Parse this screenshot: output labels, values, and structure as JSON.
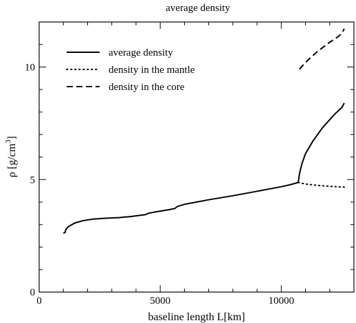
{
  "chart_data": {
    "type": "line",
    "title": "average density",
    "xlabel": "baseline length L[km]",
    "ylabel_main": "ρ [g/cm",
    "ylabel_sup": "3",
    "ylabel_close": "]",
    "xlim": [
      0,
      13000
    ],
    "ylim": [
      0,
      12
    ],
    "x_ticks": [
      0,
      5000,
      10000
    ],
    "y_ticks": [
      0,
      5,
      10
    ],
    "x_minor_step": 1000,
    "y_minor_step": 1,
    "grid": false,
    "legend_position": "upper-left",
    "series": [
      {
        "name": "average density",
        "dash": "solid",
        "points": [
          [
            1000,
            2.62
          ],
          [
            1070,
            2.65
          ],
          [
            1100,
            2.78
          ],
          [
            1200,
            2.9
          ],
          [
            1350,
            3.0
          ],
          [
            1500,
            3.08
          ],
          [
            1800,
            3.17
          ],
          [
            2200,
            3.24
          ],
          [
            2700,
            3.28
          ],
          [
            3300,
            3.31
          ],
          [
            3800,
            3.36
          ],
          [
            4400,
            3.44
          ],
          [
            4500,
            3.5
          ],
          [
            4800,
            3.56
          ],
          [
            5300,
            3.65
          ],
          [
            5600,
            3.71
          ],
          [
            5700,
            3.8
          ],
          [
            6000,
            3.9
          ],
          [
            6500,
            4.0
          ],
          [
            7000,
            4.1
          ],
          [
            8000,
            4.28
          ],
          [
            9000,
            4.48
          ],
          [
            10000,
            4.68
          ],
          [
            10400,
            4.78
          ],
          [
            10700,
            4.87
          ],
          [
            10750,
            5.25
          ],
          [
            10850,
            5.7
          ],
          [
            11000,
            6.15
          ],
          [
            11300,
            6.7
          ],
          [
            11700,
            7.3
          ],
          [
            12200,
            7.9
          ],
          [
            12500,
            8.2
          ],
          [
            12600,
            8.4
          ]
        ]
      },
      {
        "name": "density in the mantle",
        "dash": "dotted",
        "points": [
          [
            10700,
            4.87
          ],
          [
            11000,
            4.8
          ],
          [
            11500,
            4.74
          ],
          [
            12000,
            4.7
          ],
          [
            12300,
            4.68
          ],
          [
            12600,
            4.66
          ]
        ]
      },
      {
        "name": "density in the core",
        "dash": "dashed",
        "points": [
          [
            10750,
            9.9
          ],
          [
            11000,
            10.2
          ],
          [
            11500,
            10.7
          ],
          [
            12000,
            11.1
          ],
          [
            12350,
            11.35
          ],
          [
            12500,
            11.5
          ],
          [
            12600,
            11.7
          ]
        ]
      }
    ]
  }
}
